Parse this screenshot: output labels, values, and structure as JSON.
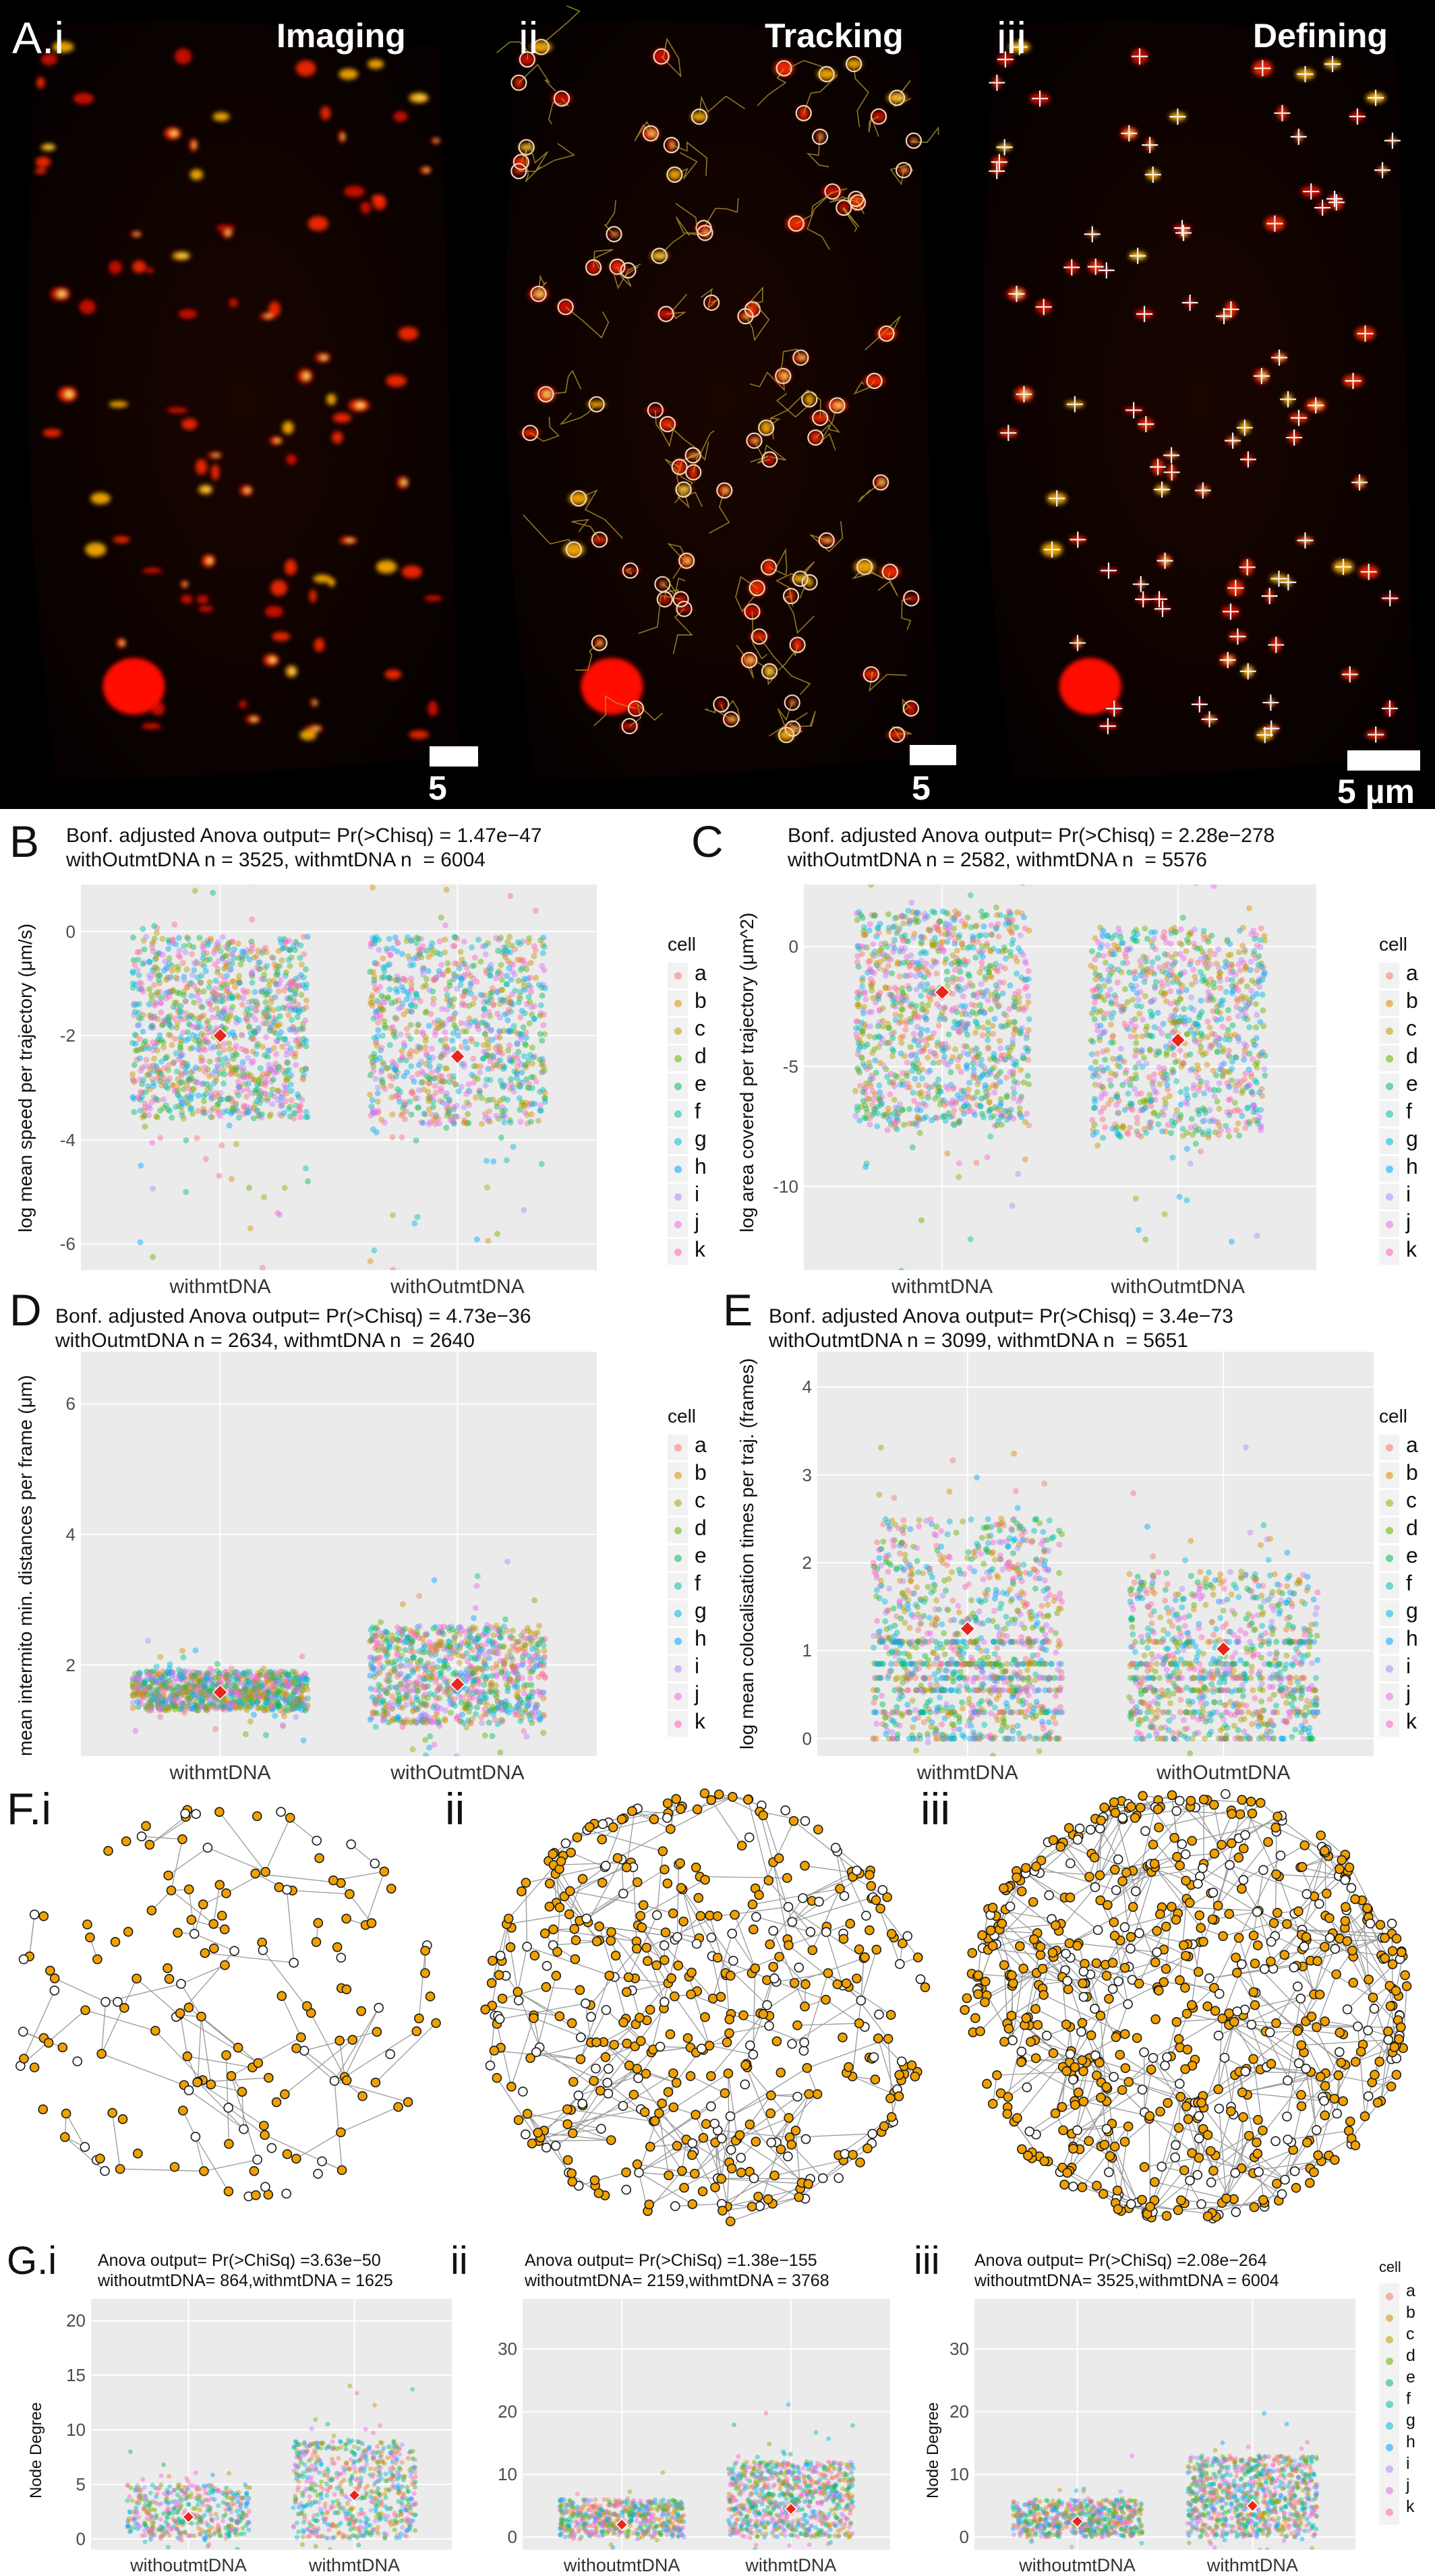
{
  "figure": {
    "panel_a": {
      "label": "A.i",
      "sub": [
        {
          "label": "",
          "title": "Imaging",
          "scale_text": "5 µm"
        },
        {
          "label": "ii",
          "title": "Tracking",
          "scale_text": "5 µm"
        },
        {
          "label": "iii",
          "title": "Defining",
          "scale_text": "5 µm"
        }
      ]
    },
    "panel_f": {
      "label": "F.i",
      "sub_labels": [
        "ii",
        "iii"
      ]
    },
    "panel_g_label": "G.i",
    "panel_g_sub_labels": [
      "ii",
      "iii"
    ]
  },
  "legend": {
    "title": "cell",
    "items": [
      "a",
      "b",
      "c",
      "d",
      "e",
      "f",
      "g",
      "h",
      "i",
      "j",
      "k"
    ],
    "colors": [
      "#f8766d",
      "#db8e00",
      "#aea200",
      "#64b200",
      "#00bd5c",
      "#00c1a7",
      "#00bade",
      "#00a6ff",
      "#b385ff",
      "#ef67eb",
      "#ff63b6"
    ]
  },
  "chart_data": [
    {
      "id": "B",
      "type": "scatter",
      "header_line1": "Bonf. adjusted Anova output= Pr(>Chisq) = 1.47e−47",
      "header_line2": "withOutmtDNA n = 3525, withmtDNA n  = 6004",
      "categories": [
        "withmtDNA",
        "withOutmtDNA"
      ],
      "ylabel": "log mean speed per trajectory (μm/s)",
      "ylim": [
        -6.5,
        0.9
      ],
      "yticks": [
        "0",
        "-2",
        "-4",
        "-6"
      ],
      "means": [
        -2.0,
        -2.4
      ],
      "core_range": [
        [
          -3.6,
          -0.1
        ],
        [
          -3.7,
          -0.1
        ]
      ]
    },
    {
      "id": "C",
      "type": "scatter",
      "header_line1": "Bonf. adjusted Anova output= Pr(>Chisq) = 2.28e−278",
      "header_line2": "withOutmtDNA n = 2582, withmtDNA n  = 5576",
      "categories": [
        "withmtDNA",
        "withOutmtDNA"
      ],
      "ylabel": "log area covered per trajectory (μm^2)",
      "ylim": [
        -13.5,
        2.6
      ],
      "yticks": [
        "0",
        "-5",
        "-10"
      ],
      "means": [
        -1.9,
        -3.9
      ],
      "core_range": [
        [
          -7.5,
          1.5
        ],
        [
          -8.0,
          0.8
        ]
      ]
    },
    {
      "id": "D",
      "type": "scatter",
      "header_line1": "Bonf. adjusted Anova output= Pr(>Chisq) = 4.73e−36",
      "header_line2": "withOutmtDNA n = 2634, withmtDNA n  = 2640",
      "categories": [
        "withmtDNA",
        "withOutmtDNA"
      ],
      "ylabel": "mean intermito min. distances per frame (μm)",
      "ylim": [
        0.6,
        6.8
      ],
      "yticks": [
        "6",
        "4",
        "2"
      ],
      "means": [
        1.58,
        1.7
      ],
      "core_range": [
        [
          1.3,
          1.9
        ],
        [
          1.1,
          2.6
        ]
      ]
    },
    {
      "id": "E",
      "type": "scatter",
      "header_line1": "Bonf. adjusted Anova output= Pr(>Chisq) = 3.4e−73",
      "header_line2": "withOutmtDNA n = 3099, withmtDNA n  = 5651",
      "categories": [
        "withmtDNA",
        "withOutmtDNA"
      ],
      "ylabel": "log mean colocalisation times per traj. (frames)",
      "ylim": [
        -0.2,
        4.4
      ],
      "yticks": [
        "4",
        "3",
        "2",
        "1",
        "0"
      ],
      "means": [
        1.25,
        1.02
      ],
      "core_range": [
        [
          0,
          2.5
        ],
        [
          0,
          1.9
        ]
      ]
    },
    {
      "id": "G.i",
      "type": "scatter",
      "header_line1": "Anova output= Pr(>ChiSq) =3.63e−50",
      "header_line2": "withoutmtDNA= 864,withmtDNA = 1625",
      "categories": [
        "withoutmtDNA",
        "withmtDNA"
      ],
      "ylabel": "Node Degree",
      "ylim": [
        -1,
        22
      ],
      "yticks": [
        "20",
        "15",
        "10",
        "5",
        "0"
      ],
      "means": [
        2.0,
        4.0
      ],
      "core_range": [
        [
          0,
          5
        ],
        [
          0,
          9
        ]
      ]
    },
    {
      "id": "G.ii",
      "type": "scatter",
      "header_line1": "Anova output= Pr(>ChiSq) =1.38e−155",
      "header_line2": "withoutmtDNA= 2159,withmtDNA = 3768",
      "categories": [
        "withoutmtDNA",
        "withmtDNA"
      ],
      "ylabel": "",
      "ylim": [
        -2,
        38
      ],
      "yticks": [
        "30",
        "20",
        "10",
        "0"
      ],
      "means": [
        2.0,
        4.5
      ],
      "core_range": [
        [
          0,
          6
        ],
        [
          0,
          12
        ]
      ]
    },
    {
      "id": "G.iii",
      "type": "scatter",
      "header_line1": "Anova output= Pr(>ChiSq) =2.08e−264",
      "header_line2": "withoutmtDNA= 3525,withmtDNA = 6004",
      "categories": [
        "withoutmtDNA",
        "withmtDNA"
      ],
      "ylabel": "Node Degree",
      "ylim": [
        -2,
        38
      ],
      "yticks": [
        "30",
        "20",
        "10",
        "0"
      ],
      "means": [
        2.5,
        5.0
      ],
      "core_range": [
        [
          0,
          6
        ],
        [
          0,
          13
        ]
      ]
    }
  ]
}
